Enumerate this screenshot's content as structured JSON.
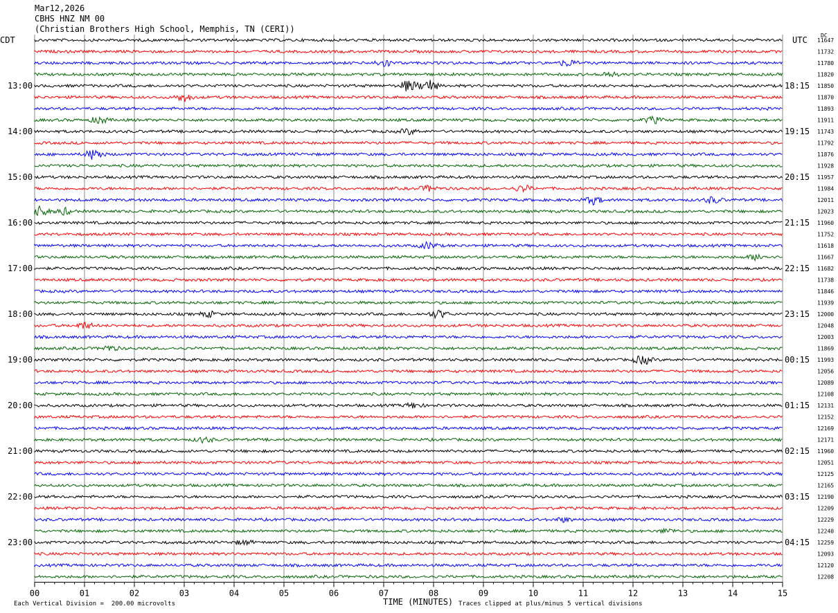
{
  "header": {
    "date": "Mar12,2026",
    "station": "CBHS HNZ NM 00",
    "site": "(Christian Brothers High School, Memphis, TN (CERI))"
  },
  "labels": {
    "left_zone": "CDT",
    "right_zone": "UTC",
    "dc_label": "DC"
  },
  "footer": {
    "scale_note": "Each Vertical Division =  200.00 microvolts",
    "xlabel": "TIME (MINUTES)",
    "clip_note": "Traces clipped at plus/minus 5 vertical divisions"
  },
  "colors": {
    "trace_cycle": [
      "#000000",
      "#ff0000",
      "#0000ff",
      "#006400"
    ],
    "grid": "#888888"
  },
  "chart_data": {
    "type": "line",
    "title": "CBHS HNZ NM 00",
    "xlabel": "TIME (MINUTES)",
    "xlim": [
      0,
      15
    ],
    "x_ticks": [
      "00",
      "01",
      "02",
      "03",
      "04",
      "05",
      "06",
      "07",
      "08",
      "09",
      "10",
      "11",
      "12",
      "13",
      "14",
      "15"
    ],
    "rows_per_hour": 4,
    "minutes_per_row": 15,
    "hour_labels_left": [
      "13:00",
      "14:00",
      "15:00",
      "16:00",
      "17:00",
      "18:00",
      "19:00",
      "20:00",
      "21:00",
      "22:00",
      "23:00"
    ],
    "hour_labels_right": [
      "18:15",
      "19:15",
      "20:15",
      "21:15",
      "22:15",
      "23:15",
      "00:15",
      "01:15",
      "02:15",
      "03:15",
      "04:15"
    ],
    "dc_offsets": [
      11647,
      11732,
      11780,
      11820,
      11850,
      11870,
      11893,
      11911,
      11743,
      11792,
      11876,
      11928,
      11957,
      11984,
      12011,
      12023,
      11960,
      11752,
      11618,
      11667,
      11682,
      11738,
      11846,
      11939,
      12000,
      12048,
      12003,
      11869,
      11993,
      12056,
      12089,
      12108,
      12131,
      12152,
      12169,
      12171,
      11960,
      12051,
      12125,
      12165,
      12190,
      12209,
      12229,
      12240,
      12259,
      12093,
      12120,
      12208
    ],
    "events": [
      {
        "row": 2,
        "minute": 7.0,
        "amp": 0.6
      },
      {
        "row": 2,
        "minute": 10.7,
        "amp": 0.5
      },
      {
        "row": 3,
        "minute": 11.5,
        "amp": 0.4
      },
      {
        "row": 4,
        "minute": 7.5,
        "amp": 0.9
      },
      {
        "row": 4,
        "minute": 7.9,
        "amp": 1.0
      },
      {
        "row": 5,
        "minute": 3.0,
        "amp": 0.6
      },
      {
        "row": 7,
        "minute": 1.3,
        "amp": 0.5
      },
      {
        "row": 7,
        "minute": 12.4,
        "amp": 0.5
      },
      {
        "row": 8,
        "minute": 7.5,
        "amp": 0.4
      },
      {
        "row": 10,
        "minute": 1.2,
        "amp": 0.9
      },
      {
        "row": 13,
        "minute": 7.9,
        "amp": 0.4
      },
      {
        "row": 13,
        "minute": 9.8,
        "amp": 0.5
      },
      {
        "row": 14,
        "minute": 11.2,
        "amp": 0.6
      },
      {
        "row": 14,
        "minute": 13.6,
        "amp": 0.5
      },
      {
        "row": 15,
        "minute": 0.1,
        "amp": 0.8
      },
      {
        "row": 15,
        "minute": 0.6,
        "amp": 0.5
      },
      {
        "row": 18,
        "minute": 7.9,
        "amp": 0.5
      },
      {
        "row": 19,
        "minute": 14.5,
        "amp": 0.5
      },
      {
        "row": 24,
        "minute": 8.1,
        "amp": 0.6
      },
      {
        "row": 24,
        "minute": 3.5,
        "amp": 0.4
      },
      {
        "row": 25,
        "minute": 1.0,
        "amp": 0.5
      },
      {
        "row": 27,
        "minute": 1.5,
        "amp": 0.4
      },
      {
        "row": 28,
        "minute": 12.2,
        "amp": 0.7
      },
      {
        "row": 32,
        "minute": 7.6,
        "amp": 0.4
      },
      {
        "row": 35,
        "minute": 3.4,
        "amp": 0.4
      },
      {
        "row": 42,
        "minute": 10.6,
        "amp": 0.3
      },
      {
        "row": 43,
        "minute": 12.7,
        "amp": 0.3
      },
      {
        "row": 44,
        "minute": 4.2,
        "amp": 0.3
      }
    ]
  }
}
